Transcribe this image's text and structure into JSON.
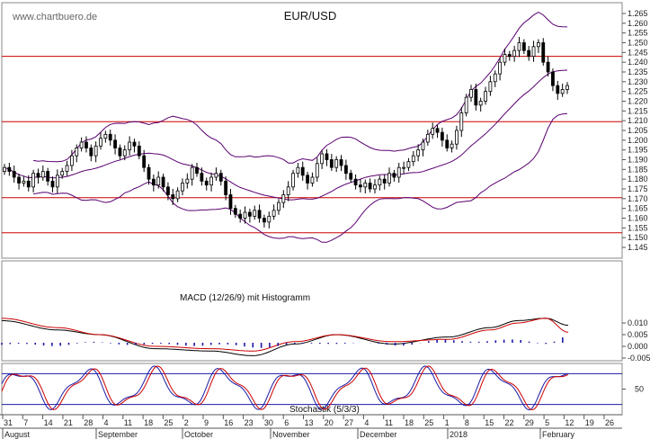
{
  "watermark": "www.chartbuero.de",
  "chart_data": [
    {
      "type": "candlestick",
      "title": "EUR/USD",
      "ylim": [
        1.145,
        1.265
      ],
      "yticks": [
        "1.265",
        "1.260",
        "1.255",
        "1.250",
        "1.245",
        "1.240",
        "1.235",
        "1.230",
        "1.225",
        "1.220",
        "1.215",
        "1.210",
        "1.205",
        "1.200",
        "1.195",
        "1.190",
        "1.185",
        "1.180",
        "1.175",
        "1.170",
        "1.165",
        "1.160",
        "1.155",
        "1.150",
        "1.145"
      ],
      "horizontal_lines": [
        1.243,
        1.2095,
        1.1705,
        1.1525
      ],
      "colors": {
        "bullish": "#ffffff",
        "bearish": "#000000",
        "bands": "#5a0070",
        "levels": "#cc0000"
      },
      "approx_closes": [
        1.186,
        1.184,
        1.181,
        1.178,
        1.179,
        1.176,
        1.183,
        1.181,
        1.184,
        1.179,
        1.176,
        1.182,
        1.184,
        1.187,
        1.192,
        1.196,
        1.199,
        1.196,
        1.192,
        1.197,
        1.201,
        1.203,
        1.2,
        1.196,
        1.192,
        1.195,
        1.199,
        1.197,
        1.192,
        1.186,
        1.18,
        1.177,
        1.181,
        1.176,
        1.172,
        1.17,
        1.174,
        1.178,
        1.18,
        1.186,
        1.183,
        1.179,
        1.177,
        1.181,
        1.183,
        1.179,
        1.172,
        1.165,
        1.162,
        1.16,
        1.163,
        1.161,
        1.164,
        1.16,
        1.158,
        1.161,
        1.164,
        1.168,
        1.172,
        1.176,
        1.183,
        1.186,
        1.182,
        1.178,
        1.181,
        1.188,
        1.193,
        1.19,
        1.186,
        1.19,
        1.187,
        1.183,
        1.18,
        1.177,
        1.176,
        1.178,
        1.175,
        1.177,
        1.18,
        1.178,
        1.183,
        1.181,
        1.186,
        1.186,
        1.189,
        1.192,
        1.195,
        1.199,
        1.203,
        1.206,
        1.204,
        1.2,
        1.196,
        1.198,
        1.205,
        1.214,
        1.222,
        1.226,
        1.218,
        1.22,
        1.225,
        1.23,
        1.234,
        1.24,
        1.244,
        1.243,
        1.246,
        1.25,
        1.246,
        1.243,
        1.248,
        1.25,
        1.24,
        1.235,
        1.228,
        1.224,
        1.226,
        1.228
      ]
    },
    {
      "type": "line",
      "title": "MACD (12/26/9) mit Histogramm",
      "ylim": [
        -0.005,
        0.014
      ],
      "yticks": [
        "0.010",
        "0.005",
        "0.000",
        "-0.005"
      ],
      "series": [
        {
          "color": "#000000",
          "anchors": [
            [
              0,
              0.011
            ],
            [
              20,
              0.007
            ],
            [
              35,
              0.005
            ],
            [
              55,
              -0.001
            ],
            [
              75,
              -0.002
            ],
            [
              90,
              -0.004
            ],
            [
              105,
              0.001
            ],
            [
              120,
              0.005
            ],
            [
              140,
              0.001
            ],
            [
              160,
              0.004
            ],
            [
              175,
              0.008
            ],
            [
              185,
              0.011
            ],
            [
              195,
              0.012
            ],
            [
              203,
              0.009
            ]
          ]
        },
        {
          "color": "#cc0000",
          "anchors": [
            [
              0,
              0.012
            ],
            [
              20,
              0.008
            ],
            [
              35,
              0.005
            ],
            [
              55,
              0.0
            ],
            [
              75,
              -0.001
            ],
            [
              90,
              -0.002
            ],
            [
              105,
              0.002
            ],
            [
              120,
              0.005
            ],
            [
              140,
              0.002
            ],
            [
              160,
              0.003
            ],
            [
              175,
              0.007
            ],
            [
              185,
              0.01
            ],
            [
              195,
              0.012
            ],
            [
              203,
              0.006
            ]
          ]
        }
      ]
    },
    {
      "type": "line",
      "title": "Stochastik (5/3/3)",
      "ylim": [
        0,
        100
      ],
      "yticks": [
        "50"
      ],
      "levels": [
        80,
        20
      ]
    }
  ],
  "x_day_ticks": [
    "31",
    "7",
    "14",
    "21",
    "28",
    "4",
    "11",
    "18",
    "25",
    "2",
    "9",
    "16",
    "23",
    "30",
    "6",
    "13",
    "20",
    "27",
    "4",
    "11",
    "18",
    "25",
    "1",
    "8",
    "15",
    "22",
    "29",
    "5",
    "12",
    "19",
    "26"
  ],
  "x_month_labels": [
    "August",
    "September",
    "October",
    "November",
    "December",
    "2018",
    "February"
  ]
}
